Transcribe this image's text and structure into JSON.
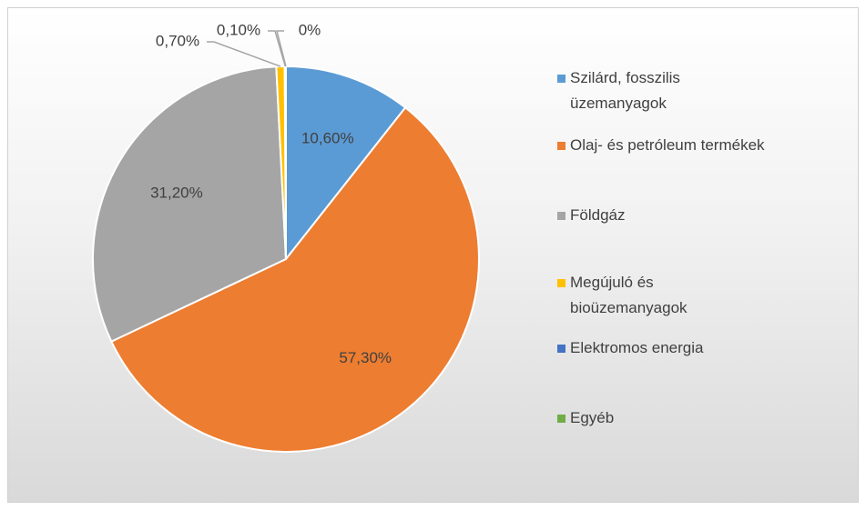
{
  "chart_data": {
    "type": "pie",
    "categories": [
      "Szilárd, fosszilis üzemanyagok",
      "Olaj- és petróleum termékek",
      "Földgáz",
      "Megújuló és bioüzemanyagok",
      "Elektromos energia",
      "Egyéb"
    ],
    "values": [
      10.6,
      57.3,
      31.2,
      0.7,
      0.1,
      0
    ],
    "value_labels": [
      "10,60%",
      "57,30%",
      "31,20%",
      "0,70%",
      "0,10%",
      "0%"
    ],
    "colors": [
      "#5b9bd5",
      "#ed7d31",
      "#a5a5a5",
      "#ffc000",
      "#4472c4",
      "#70ad47"
    ],
    "legend": "right"
  }
}
